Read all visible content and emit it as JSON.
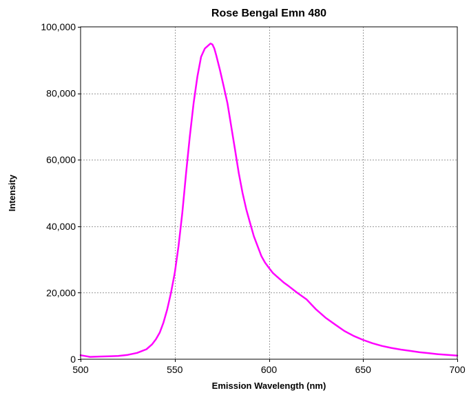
{
  "chart_data": {
    "type": "line",
    "title": "Rose Bengal Emn 480",
    "xlabel": "Emission Wavelength (nm)",
    "ylabel": "Intensity",
    "xlim": [
      500,
      700
    ],
    "ylim": [
      0,
      100000
    ],
    "x_ticks": [
      500,
      550,
      600,
      650,
      700
    ],
    "x_tick_labels": [
      "500",
      "550",
      "600",
      "650",
      "700"
    ],
    "y_ticks": [
      0,
      20000,
      40000,
      60000,
      80000,
      100000
    ],
    "y_tick_labels": [
      "0",
      "20,000",
      "40,000",
      "60,000",
      "80,000",
      "100,000"
    ],
    "grid": true,
    "legend": "none",
    "series": [
      {
        "color": "#ff00ff",
        "x": [
          500,
          505,
          510,
          515,
          520,
          525,
          530,
          535,
          538,
          540,
          542,
          544,
          546,
          548,
          550,
          552,
          554,
          556,
          558,
          560,
          562,
          564,
          566,
          568,
          569,
          570,
          571,
          572,
          574,
          576,
          578,
          580,
          582,
          584,
          586,
          588,
          590,
          592,
          594,
          596,
          598,
          600,
          602,
          604,
          606,
          608,
          610,
          615,
          620,
          625,
          630,
          635,
          640,
          645,
          650,
          655,
          660,
          665,
          670,
          675,
          680,
          685,
          690,
          695,
          700
        ],
        "y": [
          1200,
          700,
          800,
          900,
          1000,
          1300,
          1900,
          3000,
          4500,
          6000,
          8000,
          11000,
          15000,
          20000,
          26000,
          34000,
          44000,
          56000,
          67000,
          77000,
          85000,
          91000,
          93500,
          94500,
          95000,
          94700,
          93500,
          91500,
          87000,
          82000,
          77000,
          70000,
          63000,
          56000,
          50000,
          45000,
          41000,
          37000,
          34000,
          31000,
          29000,
          27500,
          26000,
          25000,
          24000,
          23000,
          22200,
          20000,
          18000,
          15000,
          12500,
          10500,
          8500,
          7000,
          5800,
          4800,
          4000,
          3400,
          2900,
          2500,
          2100,
          1800,
          1500,
          1300,
          1100
        ]
      }
    ]
  }
}
